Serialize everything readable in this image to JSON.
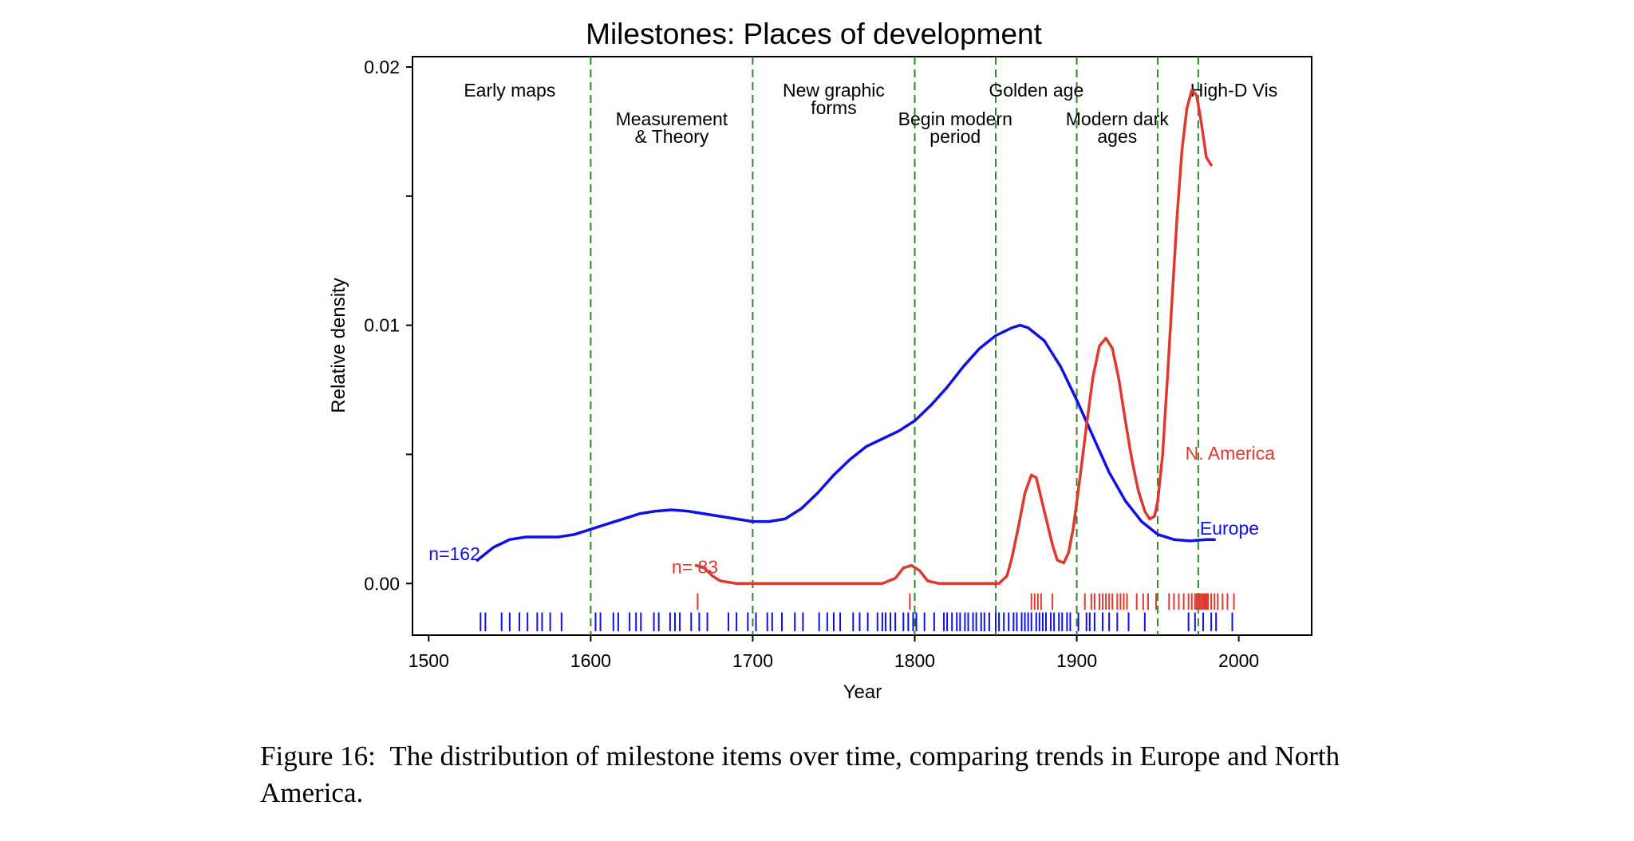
{
  "chart_data": {
    "type": "line",
    "title": "Milestones: Places of development",
    "xlabel": "Year",
    "ylabel": "Relative density",
    "xlim": [
      1490,
      2045
    ],
    "ylim": [
      -0.002,
      0.0204
    ],
    "x_ticks": [
      {
        "value": 1500,
        "label": "1500"
      },
      {
        "value": 1600,
        "label": "1600"
      },
      {
        "value": 1700,
        "label": "1700"
      },
      {
        "value": 1800,
        "label": "1800"
      },
      {
        "value": 1900,
        "label": "1900"
      },
      {
        "value": 2000,
        "label": "2000"
      }
    ],
    "y_ticks": [
      {
        "value": 0.0,
        "label": "0.00"
      },
      {
        "value": 0.005,
        "label": ""
      },
      {
        "value": 0.01,
        "label": "0.01"
      },
      {
        "value": 0.015,
        "label": ""
      },
      {
        "value": 0.02,
        "label": "0.02"
      }
    ],
    "grid": false,
    "period_boundaries": [
      1600,
      1700,
      1800,
      1850,
      1900,
      1950,
      1975
    ],
    "periods": [
      {
        "lines": [
          "Early maps"
        ],
        "x": 1550,
        "row": 0
      },
      {
        "lines": [
          "Measurement",
          "& Theory"
        ],
        "x": 1650,
        "row": 1
      },
      {
        "lines": [
          "New graphic",
          "forms"
        ],
        "x": 1750,
        "row": 0
      },
      {
        "lines": [
          "Begin modern",
          "period"
        ],
        "x": 1825,
        "row": 1
      },
      {
        "lines": [
          "Golden age"
        ],
        "x": 1875,
        "row": 0
      },
      {
        "lines": [
          "Modern dark",
          "ages"
        ],
        "x": 1925,
        "row": 1
      },
      {
        "lines": [
          "High-D Vis"
        ],
        "x": 1997,
        "row": 0
      }
    ],
    "series": [
      {
        "name": "Europe",
        "n_label": "n=162",
        "n_label_x": 1500,
        "n_label_y": 0.0009,
        "name_x": 1976,
        "name_y": 0.0019,
        "color": "#1010e6",
        "rug_values": [
          1532,
          1535,
          1545,
          1550,
          1556,
          1561,
          1567,
          1570,
          1575,
          1582,
          1603,
          1606,
          1614,
          1617,
          1624,
          1628,
          1631,
          1639,
          1642,
          1649,
          1652,
          1655,
          1662,
          1667,
          1672,
          1685,
          1690,
          1697,
          1702,
          1709,
          1712,
          1718,
          1726,
          1731,
          1741,
          1746,
          1750,
          1754,
          1762,
          1766,
          1771,
          1777,
          1780,
          1782,
          1785,
          1788,
          1793,
          1796,
          1799,
          1801,
          1806,
          1812,
          1818,
          1820,
          1823,
          1826,
          1828,
          1831,
          1833,
          1836,
          1838,
          1841,
          1843,
          1846,
          1850,
          1852,
          1855,
          1858,
          1861,
          1863,
          1866,
          1868,
          1870,
          1872,
          1875,
          1877,
          1879,
          1881,
          1884,
          1886,
          1889,
          1891,
          1894,
          1896,
          1901,
          1906,
          1908,
          1911,
          1916,
          1920,
          1925,
          1932,
          1942,
          1969,
          1973,
          1978,
          1983,
          1986,
          1996
        ],
        "points": [
          [
            1530,
            0.0009
          ],
          [
            1540,
            0.0014
          ],
          [
            1550,
            0.0017
          ],
          [
            1560,
            0.0018
          ],
          [
            1570,
            0.0018
          ],
          [
            1580,
            0.0018
          ],
          [
            1590,
            0.0019
          ],
          [
            1600,
            0.0021
          ],
          [
            1610,
            0.0023
          ],
          [
            1620,
            0.0025
          ],
          [
            1630,
            0.0027
          ],
          [
            1640,
            0.0028
          ],
          [
            1650,
            0.00285
          ],
          [
            1660,
            0.0028
          ],
          [
            1670,
            0.0027
          ],
          [
            1680,
            0.0026
          ],
          [
            1690,
            0.0025
          ],
          [
            1700,
            0.0024
          ],
          [
            1710,
            0.0024
          ],
          [
            1720,
            0.0025
          ],
          [
            1730,
            0.0029
          ],
          [
            1740,
            0.0035
          ],
          [
            1750,
            0.0042
          ],
          [
            1760,
            0.0048
          ],
          [
            1770,
            0.0053
          ],
          [
            1780,
            0.0056
          ],
          [
            1790,
            0.0059
          ],
          [
            1800,
            0.0063
          ],
          [
            1810,
            0.0069
          ],
          [
            1820,
            0.0076
          ],
          [
            1830,
            0.0084
          ],
          [
            1840,
            0.0091
          ],
          [
            1850,
            0.0096
          ],
          [
            1860,
            0.0099
          ],
          [
            1865,
            0.01
          ],
          [
            1870,
            0.0099
          ],
          [
            1880,
            0.0094
          ],
          [
            1890,
            0.0084
          ],
          [
            1900,
            0.0071
          ],
          [
            1910,
            0.0057
          ],
          [
            1920,
            0.0043
          ],
          [
            1930,
            0.0032
          ],
          [
            1940,
            0.0024
          ],
          [
            1950,
            0.0019
          ],
          [
            1960,
            0.0017
          ],
          [
            1970,
            0.00165
          ],
          [
            1980,
            0.0017
          ],
          [
            1985,
            0.0017
          ]
        ]
      },
      {
        "name": "N. America",
        "n_label": "n= 83",
        "n_label_x": 1650,
        "n_label_y": 0.0004,
        "name_x": 1967,
        "name_y": 0.0048,
        "color": "#e0382c",
        "rug_values": [
          1666,
          1797,
          1872,
          1874,
          1876,
          1878,
          1885,
          1905,
          1909,
          1911,
          1914,
          1916,
          1918,
          1920,
          1922,
          1925,
          1927,
          1929,
          1931,
          1937,
          1941,
          1944,
          1949,
          1957,
          1960,
          1963,
          1966,
          1969,
          1971,
          1973,
          1974,
          1975,
          1976,
          1977,
          1978,
          1979,
          1980,
          1981,
          1983,
          1985,
          1987,
          1990,
          1993,
          1997
        ],
        "points": [
          [
            1665,
            0.0007
          ],
          [
            1670,
            0.0006
          ],
          [
            1675,
            0.0003
          ],
          [
            1680,
            0.0001
          ],
          [
            1690,
            0.0
          ],
          [
            1700,
            0.0
          ],
          [
            1720,
            0.0
          ],
          [
            1740,
            0.0
          ],
          [
            1760,
            0.0
          ],
          [
            1780,
            0.0
          ],
          [
            1788,
            0.0002
          ],
          [
            1793,
            0.0006
          ],
          [
            1798,
            0.0007
          ],
          [
            1803,
            0.0005
          ],
          [
            1808,
            0.0001
          ],
          [
            1815,
            0.0
          ],
          [
            1830,
            0.0
          ],
          [
            1845,
            0.0
          ],
          [
            1852,
            0.0
          ],
          [
            1857,
            0.0003
          ],
          [
            1860,
            0.001
          ],
          [
            1864,
            0.0022
          ],
          [
            1868,
            0.0035
          ],
          [
            1872,
            0.0042
          ],
          [
            1875,
            0.0041
          ],
          [
            1880,
            0.0028
          ],
          [
            1885,
            0.0015
          ],
          [
            1888,
            0.0009
          ],
          [
            1892,
            0.0008
          ],
          [
            1895,
            0.0012
          ],
          [
            1898,
            0.0022
          ],
          [
            1902,
            0.0041
          ],
          [
            1906,
            0.0061
          ],
          [
            1910,
            0.008
          ],
          [
            1914,
            0.0092
          ],
          [
            1918,
            0.0095
          ],
          [
            1922,
            0.0091
          ],
          [
            1926,
            0.0079
          ],
          [
            1930,
            0.0063
          ],
          [
            1934,
            0.0048
          ],
          [
            1938,
            0.0036
          ],
          [
            1942,
            0.0028
          ],
          [
            1945,
            0.0025
          ],
          [
            1948,
            0.0026
          ],
          [
            1950,
            0.0032
          ],
          [
            1953,
            0.005
          ],
          [
            1956,
            0.008
          ],
          [
            1959,
            0.0112
          ],
          [
            1962,
            0.0143
          ],
          [
            1965,
            0.0168
          ],
          [
            1968,
            0.0184
          ],
          [
            1971,
            0.0191
          ],
          [
            1974,
            0.0189
          ],
          [
            1977,
            0.0178
          ],
          [
            1980,
            0.0165
          ],
          [
            1983,
            0.0162
          ]
        ]
      }
    ]
  },
  "caption": {
    "label": "Figure 16:",
    "text": "The distribution of milestone items over time, comparing trends in Europe and North America."
  }
}
